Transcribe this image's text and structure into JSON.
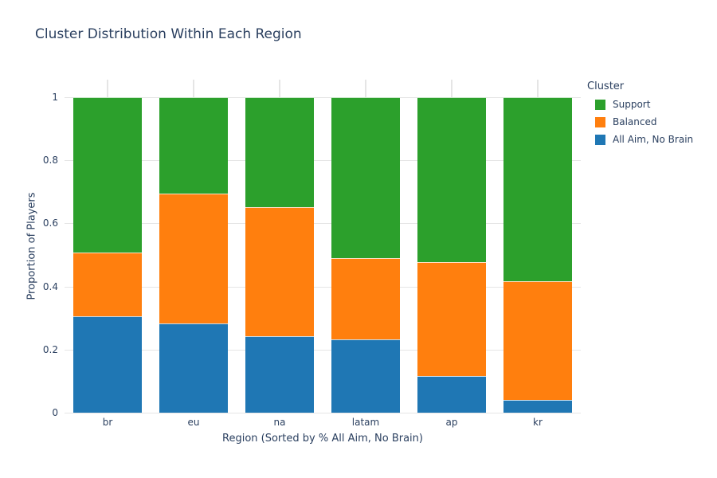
{
  "chart_data": {
    "type": "bar",
    "stacked": true,
    "orientation": "vertical",
    "title": "Cluster Distribution Within Each Region",
    "xlabel": "Region (Sorted by % All Aim, No Brain)",
    "ylabel": "Proportion of Players",
    "categories": [
      "br",
      "eu",
      "na",
      "latam",
      "ap",
      "kr"
    ],
    "series": [
      {
        "name": "All Aim, No Brain",
        "color": "#1f77b4",
        "values": [
          0.305,
          0.283,
          0.243,
          0.233,
          0.115,
          0.04
        ]
      },
      {
        "name": "Balanced",
        "color": "#ff7f0e",
        "values": [
          0.202,
          0.41,
          0.409,
          0.257,
          0.363,
          0.376
        ]
      },
      {
        "name": "Support",
        "color": "#2ca02c",
        "values": [
          0.493,
          0.307,
          0.348,
          0.51,
          0.522,
          0.584
        ]
      }
    ],
    "legend": {
      "title": "Cluster",
      "entries": [
        "Support",
        "Balanced",
        "All Aim, No Brain"
      ],
      "position": "top-right-outside"
    },
    "yticks": [
      "0",
      "0.2",
      "0.4",
      "0.6",
      "0.8",
      "1"
    ],
    "ytick_values": [
      0,
      0.2,
      0.4,
      0.6,
      0.8,
      1
    ],
    "ylim": [
      0,
      1.055
    ],
    "grid": true,
    "colors": {
      "text": "#2a3f5f",
      "grid": "#e5e5e5",
      "background": "#ffffff"
    }
  }
}
